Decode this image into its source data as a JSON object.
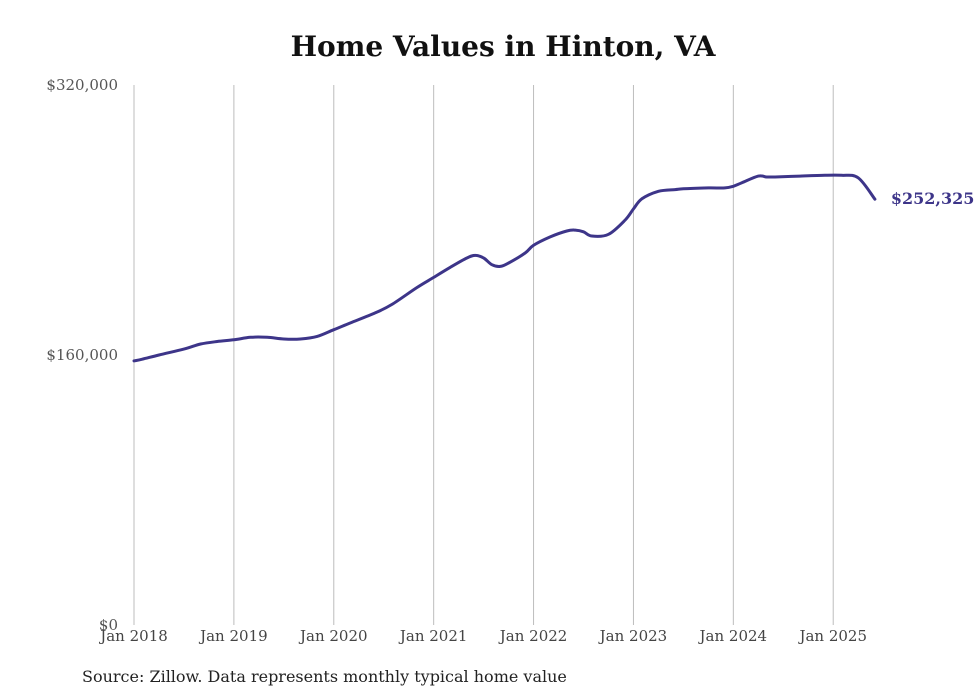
{
  "chart_data": {
    "type": "line",
    "title": "Home Values in Hinton, VA",
    "source": "Source: Zillow. Data represents monthly typical home value",
    "xlabel": "",
    "ylabel": "",
    "ylim": [
      0,
      320000
    ],
    "yticks": [
      {
        "value": 0,
        "label": "$0"
      },
      {
        "value": 160000,
        "label": "$160,000"
      },
      {
        "value": 320000,
        "label": "$320,000"
      }
    ],
    "xticks": [
      {
        "value": 2018.0,
        "label": "Jan 2018"
      },
      {
        "value": 2019.0,
        "label": "Jan 2019"
      },
      {
        "value": 2020.0,
        "label": "Jan 2020"
      },
      {
        "value": 2021.0,
        "label": "Jan 2021"
      },
      {
        "value": 2022.0,
        "label": "Jan 2022"
      },
      {
        "value": 2023.0,
        "label": "Jan 2023"
      },
      {
        "value": 2024.0,
        "label": "Jan 2024"
      },
      {
        "value": 2025.0,
        "label": "Jan 2025"
      }
    ],
    "grid": "vertical",
    "line_color": "#3d3589",
    "end_label": "$252,325",
    "series": [
      {
        "x": [
          2018.0,
          2018.083,
          2018.25,
          2018.5,
          2018.667,
          2018.833,
          2019.0,
          2019.167,
          2019.333,
          2019.5,
          2019.667,
          2019.833,
          2020.0,
          2020.167,
          2020.417,
          2020.583,
          2020.833,
          2021.0,
          2021.167,
          2021.333,
          2021.417,
          2021.5,
          2021.583,
          2021.667,
          2021.75,
          2021.917,
          2022.0,
          2022.167,
          2022.333,
          2022.417,
          2022.5,
          2022.583,
          2022.75,
          2022.917,
          2023.0,
          2023.083,
          2023.25,
          2023.417,
          2023.5,
          2023.75,
          2023.917,
          2024.0,
          2024.083,
          2024.25,
          2024.333,
          2024.417,
          2024.667,
          2024.917,
          2025.083,
          2025.25,
          2025.417
        ],
        "y": [
          156500,
          157500,
          160000,
          163500,
          166500,
          168000,
          169000,
          170500,
          170500,
          169500,
          169500,
          171000,
          175000,
          179000,
          185000,
          190000,
          200000,
          206000,
          212000,
          217500,
          219000,
          217500,
          213500,
          212500,
          214500,
          220500,
          225000,
          230000,
          233500,
          234000,
          233000,
          230500,
          231500,
          240000,
          246500,
          252500,
          257000,
          258000,
          258500,
          259000,
          259000,
          260000,
          262000,
          266000,
          265500,
          265500,
          266000,
          266500,
          266500,
          265000,
          252325
        ]
      }
    ]
  }
}
